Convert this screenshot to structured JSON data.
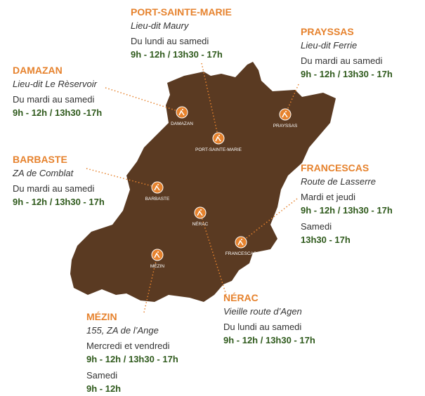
{
  "locations": [
    {
      "name": "PORT-SAINTE-MARIE",
      "address": "Lieu-dit Maury",
      "schedule": [
        {
          "days": "Du lundi au samedi",
          "hours": "9h - 12h / 13h30 - 17h"
        }
      ],
      "map_label": "PORT-SAINTE-MARIE"
    },
    {
      "name": "PRAYSSAS",
      "address": "Lieu-dit Ferrie",
      "schedule": [
        {
          "days": "Du mardi au samedi",
          "hours": "9h - 12h / 13h30 - 17h"
        }
      ],
      "map_label": "PRAYSSAS"
    },
    {
      "name": "DAMAZAN",
      "address": "Lieu-dit Le Rèservoir",
      "schedule": [
        {
          "days": "Du mardi au samedi",
          "hours": "9h - 12h / 13h30 -17h"
        }
      ],
      "map_label": "DAMAZAN"
    },
    {
      "name": "BARBASTE",
      "address": "ZA de Comblat",
      "schedule": [
        {
          "days": "Du mardi au samedi",
          "hours": "9h - 12h / 13h30 - 17h"
        }
      ],
      "map_label": "BARBASTE"
    },
    {
      "name": "FRANCESCAS",
      "address": "Route de Lasserre",
      "schedule": [
        {
          "days": "Mardi et jeudi",
          "hours": "9h - 12h / 13h30 - 17h"
        },
        {
          "days": "Samedi",
          "hours": "13h30 - 17h"
        }
      ],
      "map_label": "FRANCESCAS"
    },
    {
      "name": "NÉRAC",
      "address": "Vieille route d’Agen",
      "schedule": [
        {
          "days": "Du lundi au samedi",
          "hours": "9h - 12h / 13h30 - 17h"
        }
      ],
      "map_label": "NÉRAC"
    },
    {
      "name": "MÉZIN",
      "address": "155, ZA de l’Ange",
      "schedule": [
        {
          "days": "Mercredi et vendredi",
          "hours": "9h - 12h / 13h30 - 17h"
        },
        {
          "days": "Samedi",
          "hours": "9h - 12h"
        }
      ],
      "map_label": "MÉZIN"
    }
  ]
}
